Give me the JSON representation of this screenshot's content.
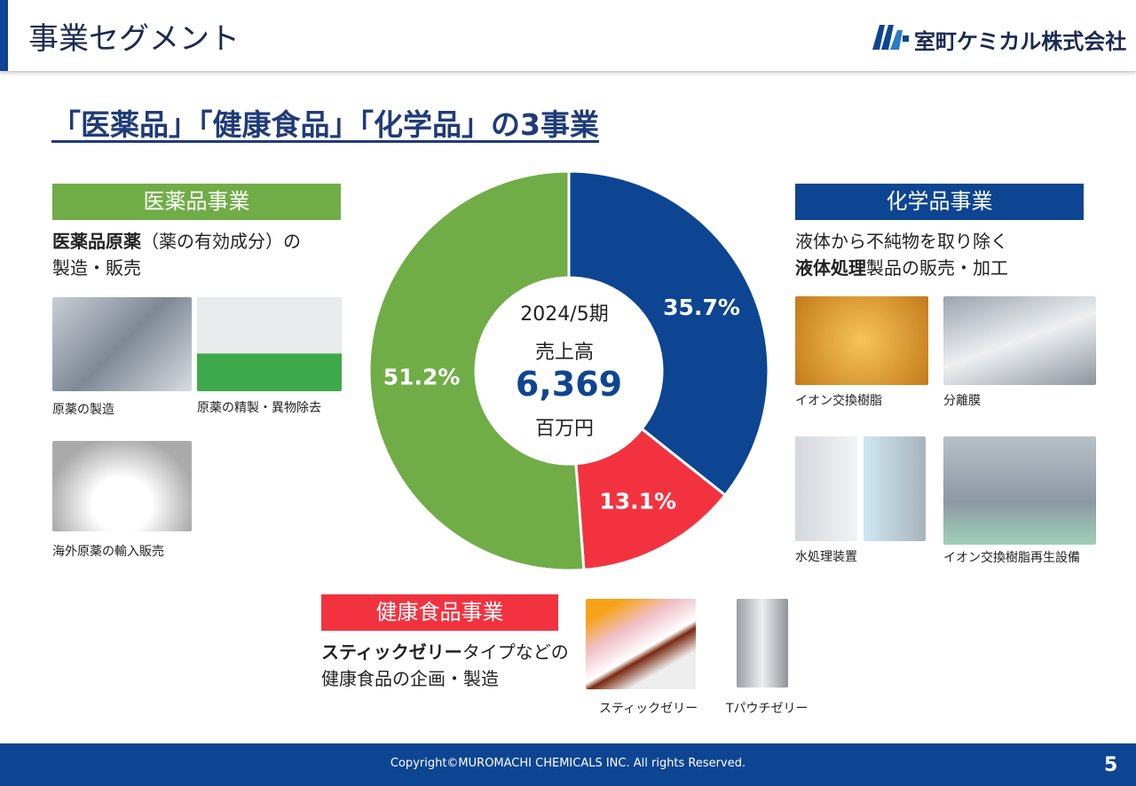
{
  "header": {
    "title": "事業セグメント",
    "company": "室町ケミカル株式会社"
  },
  "headline": "「医薬品」「健康食品」「化学品」の3事業",
  "chart_data": {
    "type": "pie",
    "center": {
      "period": "2024/5期",
      "label": "売上高",
      "value": "6,369",
      "unit": "百万円"
    },
    "categories": [
      "化学品事業",
      "健康食品事業",
      "医薬品事業"
    ],
    "values": [
      35.7,
      13.1,
      51.2
    ],
    "value_labels": [
      "35.7%",
      "13.1%",
      "51.2%"
    ],
    "colors": [
      "#0d4592",
      "#f2333f",
      "#70ad47"
    ]
  },
  "pharma": {
    "desc_bold": "医薬品原薬",
    "desc": [
      "（薬の有効成分）の",
      "製造・販売"
    ],
    "captions": [
      "原薬の製造",
      "原薬の精製・異物除去",
      "海外原薬の輸入販売"
    ]
  },
  "chemical": {
    "desc": "液体から不純物を取り除く",
    "desc_bold": "液体処理",
    "desc_rest": "製品の販売・加工",
    "captions": [
      "イオン交換樹脂",
      "分離膜",
      "水処理装置",
      "イオン交換樹脂再生設備"
    ]
  },
  "health": {
    "desc_bold": "スティックゼリー",
    "desc": [
      "タイプなどの",
      "健康食品の企画・製造"
    ],
    "captions": [
      "スティックゼリー",
      "Tパウチゼリー"
    ]
  },
  "footer": {
    "copyright": "Copyright©MUROMACHI CHEMICALS INC. All rights Reserved.",
    "page": "5"
  }
}
